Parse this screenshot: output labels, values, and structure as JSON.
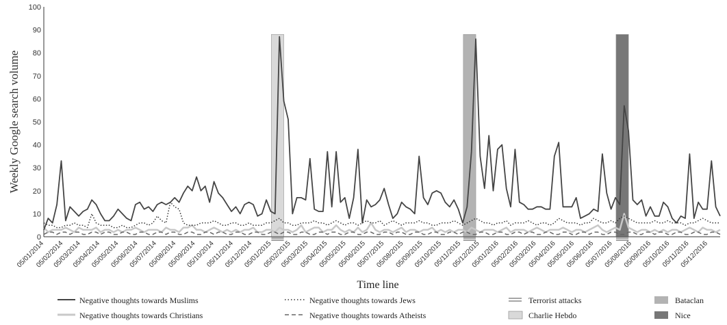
{
  "chart_data": {
    "type": "line",
    "ylabel": "Weekly Google search volume",
    "xlabel": "Time line",
    "ylim": [
      0,
      100
    ],
    "yticks": [
      0,
      10,
      20,
      30,
      40,
      50,
      60,
      70,
      80,
      90,
      100
    ],
    "xticks": [
      "05/01/2014",
      "05/02/2014",
      "05/03/2014",
      "05/04/2014",
      "05/05/2014",
      "05/06/2014",
      "05/07/2014",
      "05/08/2014",
      "05/09/2014",
      "05/10/2014",
      "05/11/2014",
      "05/12/2014",
      "05/01/2015",
      "05/02/2015",
      "05/03/2015",
      "05/04/2015",
      "05/05/2015",
      "05/06/2015",
      "05/07/2015",
      "05/08/2015",
      "05/09/2015",
      "05/10/2015",
      "05/11/2015",
      "05/12/2015",
      "05/01/2016",
      "05/02/2016",
      "05/03/2016",
      "05/04/2016",
      "05/05/2016",
      "05/06/2016",
      "05/07/2016",
      "05/08/2016",
      "05/09/2016",
      "05/10/2016",
      "05/11/2016",
      "05/12/2016"
    ],
    "x_start": "05/01/2014",
    "x_end": "25/12/2016",
    "series": [
      {
        "name": "Negative thoughts towards Muslims",
        "color": "#444444",
        "dash": "solid",
        "values": [
          3,
          8,
          6,
          14,
          33,
          7,
          13,
          11,
          9,
          11,
          12,
          16,
          14,
          10,
          7,
          7,
          9,
          12,
          10,
          8,
          7,
          14,
          15,
          12,
          13,
          11,
          14,
          15,
          14,
          15,
          17,
          15,
          19,
          22,
          20,
          26,
          20,
          22,
          15,
          24,
          19,
          17,
          14,
          11,
          13,
          10,
          14,
          15,
          14,
          9,
          10,
          16,
          11,
          10,
          87,
          59,
          51,
          10,
          17,
          17,
          16,
          34,
          12,
          11,
          11,
          37,
          13,
          37,
          15,
          17,
          8,
          17,
          38,
          6,
          16,
          13,
          14,
          16,
          21,
          14,
          8,
          10,
          15,
          13,
          12,
          10,
          35,
          17,
          14,
          19,
          20,
          19,
          15,
          13,
          16,
          12,
          6,
          13,
          37,
          86,
          35,
          21,
          44,
          20,
          38,
          40,
          21,
          13,
          38,
          15,
          14,
          12,
          12,
          13,
          13,
          12,
          12,
          35,
          41,
          13,
          13,
          13,
          17,
          8,
          9,
          10,
          12,
          11,
          36,
          19,
          12,
          17,
          14,
          57,
          46,
          16,
          14,
          16,
          9,
          13,
          9,
          9,
          15,
          13,
          8,
          6,
          9,
          8,
          36,
          8,
          15,
          12,
          12,
          33,
          13,
          9
        ]
      },
      {
        "name": "Negative thoughts towards Jews",
        "color": "#333333",
        "dash": "dotted",
        "values": [
          6,
          5,
          5,
          4,
          4,
          5,
          5,
          6,
          5,
          5,
          4,
          10,
          6,
          5,
          5,
          5,
          4,
          4,
          5,
          4,
          4,
          5,
          6,
          6,
          5,
          6,
          9,
          7,
          6,
          15,
          13,
          12,
          6,
          5,
          5,
          5,
          6,
          6,
          6,
          7,
          6,
          5,
          5,
          6,
          6,
          5,
          5,
          6,
          5,
          5,
          5,
          6,
          6,
          7,
          8,
          6,
          6,
          5,
          5,
          6,
          6,
          6,
          7,
          6,
          6,
          5,
          6,
          7,
          6,
          5,
          6,
          6,
          5,
          6,
          7,
          6,
          6,
          7,
          5,
          6,
          7,
          6,
          5,
          6,
          6,
          6,
          7,
          6,
          6,
          5,
          5,
          6,
          6,
          6,
          7,
          6,
          5,
          6,
          7,
          8,
          7,
          6,
          6,
          5,
          6,
          6,
          7,
          5,
          6,
          6,
          6,
          7,
          6,
          5,
          6,
          6,
          5,
          6,
          8,
          7,
          6,
          6,
          6,
          5,
          6,
          6,
          8,
          7,
          6,
          6,
          7,
          6,
          8,
          9,
          8,
          7,
          6,
          6,
          6,
          6,
          7,
          6,
          6,
          7,
          6,
          6,
          6,
          5,
          6,
          6,
          7,
          8,
          7,
          6,
          6,
          6
        ]
      },
      {
        "name": "Negative thoughts towards Christians",
        "color": "#c8c8c8",
        "dash": "solid",
        "values": [
          4,
          2,
          3,
          3,
          3,
          4,
          3,
          2,
          4,
          3,
          3,
          3,
          4,
          2,
          3,
          3,
          2,
          3,
          2,
          3,
          3,
          4,
          3,
          2,
          3,
          3,
          3,
          2,
          4,
          3,
          3,
          2,
          4,
          4,
          5,
          3,
          3,
          2,
          3,
          4,
          3,
          2,
          3,
          2,
          3,
          2,
          3,
          3,
          4,
          2,
          2,
          3,
          3,
          2,
          4,
          3,
          3,
          2,
          3,
          5,
          2,
          3,
          4,
          4,
          2,
          3,
          3,
          5,
          3,
          2,
          3,
          2,
          4,
          2,
          3,
          6,
          3,
          2,
          3,
          3,
          2,
          3,
          4,
          2,
          3,
          3,
          2,
          3,
          3,
          4,
          2,
          3,
          2,
          3,
          2,
          3,
          3,
          2,
          4,
          3,
          2,
          3,
          3,
          3,
          2,
          3,
          4,
          2,
          3,
          3,
          3,
          2,
          3,
          4,
          3,
          2,
          3,
          3,
          3,
          4,
          3,
          2,
          3,
          3,
          2,
          3,
          4,
          5,
          3,
          2,
          3,
          4,
          3,
          10,
          4,
          3,
          2,
          3,
          3,
          2,
          3,
          2,
          3,
          2,
          3,
          3,
          2,
          3,
          4,
          3,
          2,
          4,
          3,
          3,
          2,
          3
        ]
      },
      {
        "name": "Negative thoughts towards Atheists",
        "color": "#666666",
        "dash": "dashed",
        "values": [
          1,
          2,
          2,
          1,
          2,
          2,
          1,
          2,
          2,
          1,
          1,
          2,
          2,
          1,
          2,
          2,
          1,
          1,
          2,
          2,
          1,
          1,
          2,
          2,
          1,
          1,
          2,
          2,
          1,
          2,
          2,
          1,
          1,
          2,
          2,
          1,
          1,
          2,
          2,
          1,
          2,
          2,
          1,
          1,
          2,
          2,
          1,
          1,
          2,
          2,
          1,
          1,
          2,
          2,
          1,
          2,
          2,
          1,
          1,
          2,
          2,
          1,
          1,
          2,
          2,
          1,
          2,
          2,
          1,
          1,
          2,
          2,
          1,
          1,
          2,
          2,
          1,
          1,
          2,
          2,
          1,
          2,
          2,
          1,
          1,
          2,
          2,
          1,
          1,
          2,
          2,
          1,
          1,
          2,
          2,
          1,
          2,
          2,
          1,
          1,
          2,
          2,
          1,
          1,
          2,
          2,
          1,
          1,
          2,
          2,
          1,
          2,
          2,
          1,
          1,
          2,
          2,
          1,
          1,
          2,
          2,
          1,
          1,
          2,
          2,
          1,
          2,
          2,
          1,
          1,
          2,
          2,
          1,
          1,
          2,
          2,
          1,
          1,
          2,
          2,
          1,
          2,
          2,
          1,
          1,
          2,
          2,
          1,
          1,
          2,
          2,
          1,
          1,
          2,
          2,
          1
        ]
      }
    ],
    "events": [
      {
        "name": "Charlie Hebdo",
        "color": "#d9d9d9",
        "start": "05/01/2015",
        "end": "25/01/2015"
      },
      {
        "name": "Bataclan",
        "color": "#b3b3b3",
        "start": "09/11/2015",
        "end": "29/11/2015"
      },
      {
        "name": "Nice",
        "color": "#777777",
        "start": "11/07/2016",
        "end": "31/07/2016"
      }
    ],
    "terrorist_attacks_label": "Terrorist attacks"
  },
  "legend": {
    "muslims": "Negative thoughts towards Muslims",
    "jews": "Negative thoughts towards Jews",
    "christians": "Negative thoughts towards Christians",
    "atheists": "Negative thoughts towards Atheists",
    "attacks": "Terrorist attacks",
    "charlie": "Charlie Hebdo",
    "bataclan": "Bataclan",
    "nice": "Nice"
  }
}
